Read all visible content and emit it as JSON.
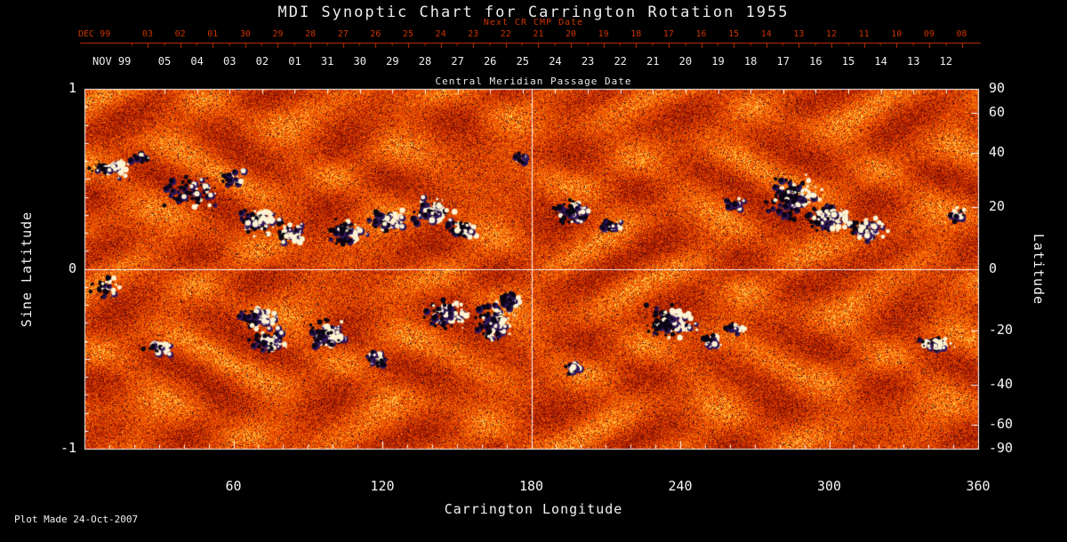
{
  "title": "MDI Synoptic Chart for Carrington Rotation 1955",
  "axes": {
    "next_cr": {
      "label": "Next CR CMP Date",
      "month": "DEC 99",
      "days": [
        "03",
        "02",
        "01",
        "30",
        "29",
        "28",
        "27",
        "26",
        "25",
        "24",
        "23",
        "22",
        "21",
        "20",
        "19",
        "18",
        "17",
        "16",
        "15",
        "14",
        "13",
        "12",
        "11",
        "10",
        "09",
        "08"
      ]
    },
    "cmp": {
      "label": "Central Meridian Passage Date",
      "month": "NOV 99",
      "days": [
        "05",
        "04",
        "03",
        "02",
        "01",
        "31",
        "30",
        "29",
        "28",
        "27",
        "26",
        "25",
        "24",
        "23",
        "22",
        "21",
        "20",
        "19",
        "18",
        "17",
        "16",
        "15",
        "14",
        "13",
        "12"
      ]
    },
    "left": {
      "label": "Sine Latitude",
      "ticks": [
        "1",
        "0",
        "-1"
      ]
    },
    "right": {
      "label": "Latitude",
      "ticks": [
        "90",
        "60",
        "40",
        "20",
        "0",
        "-20",
        "-40",
        "-60",
        "-90"
      ]
    },
    "bottom": {
      "label": "Carrington Longitude",
      "ticks": [
        "60",
        "120",
        "180",
        "240",
        "300",
        "360"
      ]
    }
  },
  "footer": {
    "plot_made": "Plot Made 24-Oct-2007"
  },
  "colors": {
    "background": "#000000",
    "axis_red": "#cc3300",
    "axis_white": "#ffffff",
    "positive_polarity": "#fdf3d2",
    "negative_polarity": "#0a0512"
  },
  "chart_data": {
    "type": "heatmap",
    "title": "MDI Synoptic Chart for Carrington Rotation 1955",
    "xlabel": "Carrington Longitude",
    "x_range": [
      0,
      360
    ],
    "x_ticks": [
      60,
      120,
      180,
      240,
      300,
      360
    ],
    "ylabel_left": "Sine Latitude",
    "y_left_range": [
      -1,
      1
    ],
    "y_left_ticks": [
      1,
      0,
      -1
    ],
    "ylabel_right": "Latitude",
    "y_right_ticks_deg": [
      90,
      60,
      40,
      20,
      0,
      -20,
      -40,
      -60,
      -90
    ],
    "top_axis_next_cr": {
      "label": "Next CR CMP Date",
      "month": "DEC 99",
      "days": [
        "03",
        "02",
        "01",
        "30",
        "29",
        "28",
        "27",
        "26",
        "25",
        "24",
        "23",
        "22",
        "21",
        "20",
        "19",
        "18",
        "17",
        "16",
        "15",
        "14",
        "13",
        "12",
        "11",
        "10",
        "09",
        "08"
      ]
    },
    "top_axis_cmp": {
      "label": "Central Meridian Passage Date",
      "month": "NOV 99",
      "days": [
        "05",
        "04",
        "03",
        "02",
        "01",
        "31",
        "30",
        "29",
        "28",
        "27",
        "26",
        "25",
        "24",
        "23",
        "22",
        "21",
        "20",
        "19",
        "18",
        "17",
        "16",
        "15",
        "14",
        "13",
        "12"
      ]
    },
    "reference_lines": {
      "vertical_carrington_lon": 180,
      "horizontal_sine_latitude": 0
    },
    "colormap": "solar magnetogram: orange/red noise background, white = strong positive magnetic field, black/dark-violet = strong negative magnetic field",
    "footer_note": "Plot Made 24-Oct-2007",
    "active_regions": [
      {
        "lon": 10,
        "sine_lat": 0.56,
        "ext_lon": 8,
        "ext_slat": 0.07,
        "white_frac": 0.8,
        "dots": 60
      },
      {
        "lon": 24,
        "sine_lat": 0.62,
        "ext_lon": 5,
        "ext_slat": 0.05,
        "white_frac": 0.2,
        "dots": 25
      },
      {
        "lon": 45,
        "sine_lat": 0.42,
        "ext_lon": 12,
        "ext_slat": 0.12,
        "white_frac": 0.35,
        "dots": 70
      },
      {
        "lon": 60,
        "sine_lat": 0.5,
        "ext_lon": 6,
        "ext_slat": 0.06,
        "white_frac": 0.3,
        "dots": 30
      },
      {
        "lon": 70,
        "sine_lat": 0.26,
        "ext_lon": 9,
        "ext_slat": 0.09,
        "white_frac": 0.6,
        "dots": 90
      },
      {
        "lon": 83,
        "sine_lat": 0.2,
        "ext_lon": 7,
        "ext_slat": 0.07,
        "white_frac": 0.5,
        "dots": 70
      },
      {
        "lon": 106,
        "sine_lat": 0.2,
        "ext_lon": 8,
        "ext_slat": 0.09,
        "white_frac": 0.3,
        "dots": 90
      },
      {
        "lon": 122,
        "sine_lat": 0.26,
        "ext_lon": 7,
        "ext_slat": 0.08,
        "white_frac": 0.55,
        "dots": 80
      },
      {
        "lon": 140,
        "sine_lat": 0.33,
        "ext_lon": 9,
        "ext_slat": 0.09,
        "white_frac": 0.6,
        "dots": 90
      },
      {
        "lon": 152,
        "sine_lat": 0.22,
        "ext_lon": 6,
        "ext_slat": 0.06,
        "white_frac": 0.45,
        "dots": 50
      },
      {
        "lon": 176,
        "sine_lat": 0.62,
        "ext_lon": 4,
        "ext_slat": 0.04,
        "white_frac": 0.3,
        "dots": 18
      },
      {
        "lon": 197,
        "sine_lat": 0.32,
        "ext_lon": 8,
        "ext_slat": 0.08,
        "white_frac": 0.45,
        "dots": 90
      },
      {
        "lon": 212,
        "sine_lat": 0.24,
        "ext_lon": 5,
        "ext_slat": 0.05,
        "white_frac": 0.4,
        "dots": 40
      },
      {
        "lon": 262,
        "sine_lat": 0.36,
        "ext_lon": 4,
        "ext_slat": 0.05,
        "white_frac": 0.4,
        "dots": 25
      },
      {
        "lon": 286,
        "sine_lat": 0.4,
        "ext_lon": 12,
        "ext_slat": 0.14,
        "white_frac": 0.45,
        "dots": 140
      },
      {
        "lon": 300,
        "sine_lat": 0.28,
        "ext_lon": 9,
        "ext_slat": 0.1,
        "white_frac": 0.6,
        "dots": 110
      },
      {
        "lon": 315,
        "sine_lat": 0.22,
        "ext_lon": 8,
        "ext_slat": 0.08,
        "white_frac": 0.65,
        "dots": 90
      },
      {
        "lon": 352,
        "sine_lat": 0.3,
        "ext_lon": 4,
        "ext_slat": 0.05,
        "white_frac": 0.5,
        "dots": 20
      },
      {
        "lon": 8,
        "sine_lat": -0.1,
        "ext_lon": 6,
        "ext_slat": 0.08,
        "white_frac": 0.25,
        "dots": 40
      },
      {
        "lon": 30,
        "sine_lat": -0.44,
        "ext_lon": 7,
        "ext_slat": 0.05,
        "white_frac": 0.7,
        "dots": 30
      },
      {
        "lon": 70,
        "sine_lat": -0.28,
        "ext_lon": 9,
        "ext_slat": 0.08,
        "white_frac": 0.6,
        "dots": 90
      },
      {
        "lon": 74,
        "sine_lat": -0.4,
        "ext_lon": 8,
        "ext_slat": 0.07,
        "white_frac": 0.4,
        "dots": 80
      },
      {
        "lon": 98,
        "sine_lat": -0.36,
        "ext_lon": 8,
        "ext_slat": 0.1,
        "white_frac": 0.55,
        "dots": 90
      },
      {
        "lon": 118,
        "sine_lat": -0.5,
        "ext_lon": 5,
        "ext_slat": 0.05,
        "white_frac": 0.4,
        "dots": 30
      },
      {
        "lon": 146,
        "sine_lat": -0.25,
        "ext_lon": 9,
        "ext_slat": 0.1,
        "white_frac": 0.5,
        "dots": 110
      },
      {
        "lon": 165,
        "sine_lat": -0.3,
        "ext_lon": 8,
        "ext_slat": 0.12,
        "white_frac": 0.45,
        "dots": 130
      },
      {
        "lon": 172,
        "sine_lat": -0.18,
        "ext_lon": 5,
        "ext_slat": 0.06,
        "white_frac": 0.25,
        "dots": 60
      },
      {
        "lon": 196,
        "sine_lat": -0.55,
        "ext_lon": 4,
        "ext_slat": 0.04,
        "white_frac": 0.7,
        "dots": 20
      },
      {
        "lon": 236,
        "sine_lat": -0.3,
        "ext_lon": 11,
        "ext_slat": 0.11,
        "white_frac": 0.5,
        "dots": 120
      },
      {
        "lon": 252,
        "sine_lat": -0.4,
        "ext_lon": 5,
        "ext_slat": 0.05,
        "white_frac": 0.45,
        "dots": 40
      },
      {
        "lon": 262,
        "sine_lat": -0.33,
        "ext_lon": 4,
        "ext_slat": 0.04,
        "white_frac": 0.4,
        "dots": 25
      },
      {
        "lon": 342,
        "sine_lat": -0.42,
        "ext_lon": 9,
        "ext_slat": 0.05,
        "white_frac": 0.75,
        "dots": 60
      }
    ]
  }
}
